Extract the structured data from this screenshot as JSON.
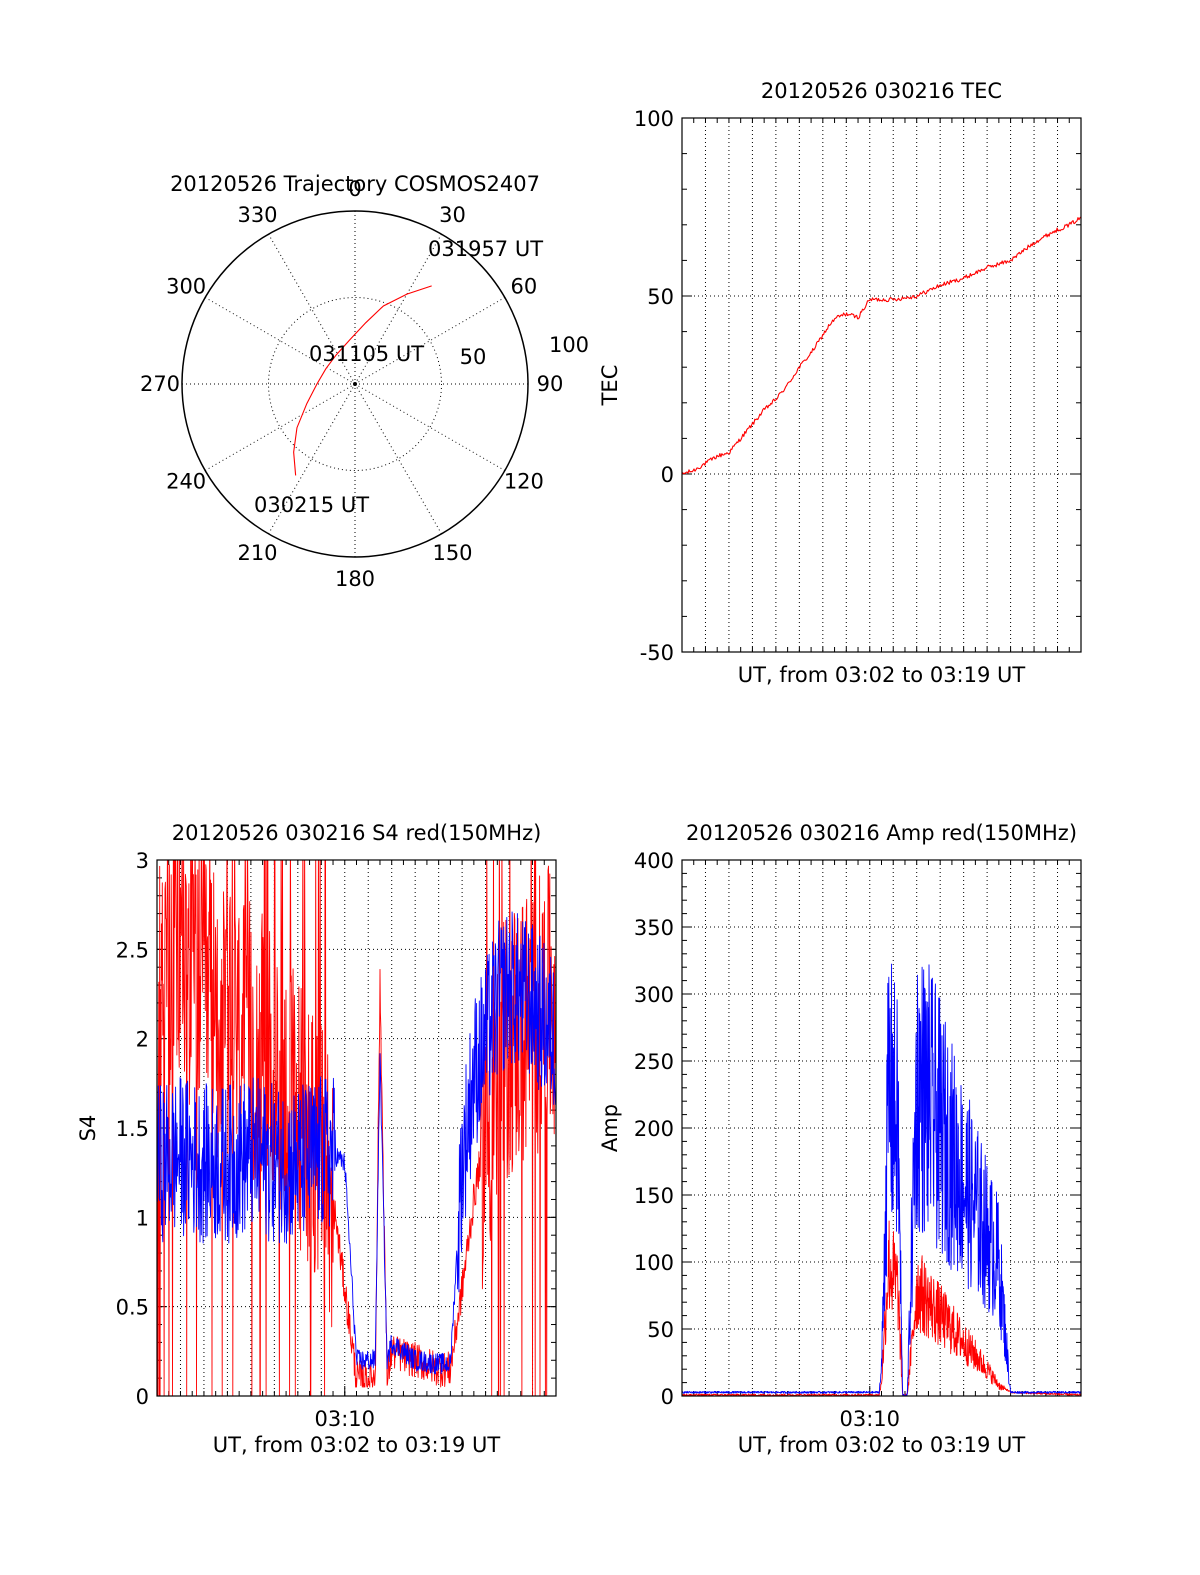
{
  "chart_data": [
    {
      "type": "polar",
      "title": "20120526 Trajectory COSMOS2407",
      "angle_labels": [
        "0",
        "30",
        "60",
        "90",
        "120",
        "150",
        "180",
        "210",
        "240",
        "270",
        "300",
        "330"
      ],
      "radius_labels": [
        "50",
        "100"
      ],
      "rlim": [
        0,
        100
      ],
      "grid": true,
      "series": [
        {
          "color": "#ff0000",
          "points_az_deg_r": [
            [
              213,
              63
            ],
            [
              222,
              53
            ],
            [
              233,
              42
            ],
            [
              248,
              30
            ],
            [
              270,
              22
            ],
            [
              298,
              19
            ],
            [
              327,
              20
            ],
            [
              354,
              26
            ],
            [
              10,
              36
            ],
            [
              20,
              48
            ],
            [
              30,
              60
            ],
            [
              38,
              72
            ]
          ]
        }
      ],
      "annotations": [
        {
          "text": "031957 UT",
          "az": 38,
          "r": 72
        },
        {
          "text": "031105 UT",
          "az": 345,
          "r": 13
        },
        {
          "text": "030215 UT",
          "az": 213,
          "r": 63
        }
      ]
    },
    {
      "type": "line",
      "title": "20120526 030216 TEC",
      "xlabel": "UT, from 03:02 to 03:19 UT",
      "ylabel": "TEC",
      "ylim": [
        -50,
        100
      ],
      "yticks": [
        "100",
        "50",
        "0",
        "-50"
      ],
      "xlim_minutes": [
        0,
        17
      ],
      "grid": true,
      "series": [
        {
          "color": "#ff0000",
          "x_minutes": [
            0,
            0.5,
            1,
            1.5,
            2,
            2.5,
            3,
            3.5,
            4,
            4.5,
            5,
            5.5,
            6,
            6.3,
            6.6,
            7,
            7.5,
            8,
            9,
            10,
            11,
            12,
            13,
            14,
            15,
            15.8,
            16.5,
            17
          ],
          "y": [
            0,
            1,
            3,
            5,
            6,
            10,
            14,
            18,
            21,
            25,
            30,
            34,
            39,
            42,
            44,
            45,
            44,
            49,
            49,
            50,
            53,
            55,
            58,
            60,
            65,
            68,
            70,
            72
          ]
        }
      ]
    },
    {
      "type": "line",
      "title": "20120526 030216 S4 red(150MHz)",
      "xlabel": "UT, from 03:02 to 03:19 UT",
      "ylabel": "S4",
      "ylim": [
        0,
        3
      ],
      "yticks": [
        "3",
        "2.5",
        "2",
        "1.5",
        "1",
        "0.5",
        "0"
      ],
      "xticks": [
        "03:10"
      ],
      "xlim_minutes": [
        0,
        17
      ],
      "grid": true,
      "series": [
        {
          "color": "#ff0000",
          "x_minutes": [
            0,
            1,
            2,
            3,
            4,
            5,
            6,
            7,
            7.6,
            8.0,
            8.5,
            9.3,
            9.5,
            9.8,
            10,
            11,
            12,
            12.5,
            13,
            13.5,
            14,
            14.5,
            15,
            16,
            17
          ],
          "y": [
            2.2,
            2.5,
            2.3,
            2.0,
            2.0,
            1.8,
            1.6,
            1.4,
            1.0,
            0.6,
            0.1,
            0.1,
            2.3,
            0.1,
            0.25,
            0.2,
            0.15,
            0.15,
            0.6,
            1.1,
            1.5,
            1.7,
            2.0,
            2.1,
            2.2
          ]
        },
        {
          "color": "#0000ff",
          "x_minutes": [
            0,
            1,
            2,
            3,
            4,
            5,
            6,
            7,
            7.6,
            8.0,
            8.5,
            9.3,
            9.5,
            9.8,
            10,
            11,
            12,
            12.5,
            13,
            13.5,
            14,
            14.5,
            15,
            16,
            17
          ],
          "y": [
            1.3,
            1.35,
            1.3,
            1.3,
            1.35,
            1.3,
            1.3,
            1.35,
            1.35,
            1.3,
            0.2,
            0.2,
            1.9,
            0.2,
            0.3,
            0.2,
            0.18,
            0.18,
            1.3,
            1.8,
            2.0,
            2.2,
            2.3,
            2.2,
            2.0
          ]
        }
      ]
    },
    {
      "type": "line",
      "title": "20120526 030216 Amp red(150MHz)",
      "xlabel": "UT, from 03:02 to 03:19 UT",
      "ylabel": "Amp",
      "ylim": [
        0,
        400
      ],
      "yticks": [
        "400",
        "350",
        "300",
        "250",
        "200",
        "150",
        "100",
        "50",
        "0"
      ],
      "xticks": [
        "03:10"
      ],
      "xlim_minutes": [
        0,
        17
      ],
      "grid": true,
      "series": [
        {
          "color": "#ff0000",
          "x_minutes": [
            0,
            8.4,
            8.5,
            8.8,
            9.2,
            9.4,
            9.6,
            10.0,
            10.5,
            11.0,
            11.5,
            12.0,
            12.5,
            13.0,
            13.5,
            14.0,
            17
          ],
          "y": [
            0,
            0,
            10,
            100,
            80,
            0,
            0,
            80,
            70,
            60,
            50,
            40,
            30,
            20,
            8,
            2,
            0
          ]
        },
        {
          "color": "#0000ff",
          "x_minutes": [
            0,
            8.4,
            8.5,
            8.8,
            9.2,
            9.4,
            9.6,
            10.0,
            10.5,
            11.0,
            11.5,
            12.0,
            12.5,
            13.0,
            13.5,
            14.0,
            17
          ],
          "y": [
            2,
            2,
            20,
            230,
            200,
            0,
            0,
            230,
            220,
            200,
            180,
            160,
            140,
            120,
            100,
            2,
            2
          ]
        }
      ]
    }
  ]
}
